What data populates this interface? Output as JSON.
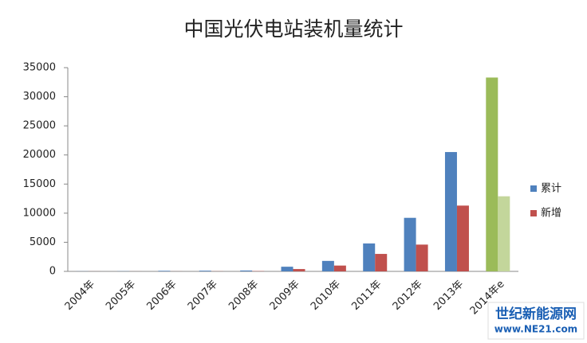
{
  "chart_data": {
    "type": "bar",
    "title": "中国光伏电站装机量统计",
    "categories": [
      "2004年",
      "2005年",
      "2006年",
      "2007年",
      "2008年",
      "2009年",
      "2010年",
      "2011年",
      "2012年",
      "2013年",
      "2014年e"
    ],
    "series": [
      {
        "name": "累计",
        "color": "#4f81bd",
        "colors": [
          "#4f81bd",
          "#4f81bd",
          "#4f81bd",
          "#4f81bd",
          "#4f81bd",
          "#4f81bd",
          "#4f81bd",
          "#4f81bd",
          "#4f81bd",
          "#4f81bd",
          "#9bbb59"
        ],
        "values": [
          20,
          30,
          100,
          120,
          150,
          800,
          1800,
          4800,
          9200,
          20500,
          33300
        ]
      },
      {
        "name": "新增",
        "color": "#c0504d",
        "colors": [
          "#c0504d",
          "#c0504d",
          "#c0504d",
          "#c0504d",
          "#c0504d",
          "#c0504d",
          "#c0504d",
          "#c0504d",
          "#c0504d",
          "#c0504d",
          "#c3d69b"
        ],
        "values": [
          10,
          5,
          10,
          20,
          45,
          400,
          1000,
          3000,
          4600,
          11300,
          12900
        ]
      }
    ],
    "ylim": [
      0,
      35000
    ],
    "yticks": [
      0,
      5000,
      10000,
      15000,
      20000,
      25000,
      30000,
      35000
    ],
    "grid": false,
    "legend": "right"
  },
  "watermark": {
    "name": "世纪新能源网",
    "url": "www.NE21.com"
  }
}
